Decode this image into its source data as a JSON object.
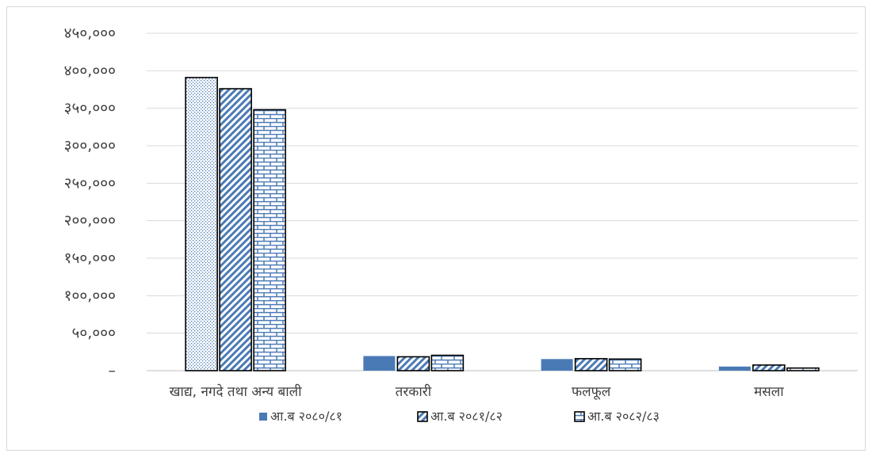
{
  "chart_data": {
    "type": "bar",
    "categories": [
      "खाद्य, नगदे तथा अन्य बाली",
      "तरकारी",
      "फलफूल",
      "मसला"
    ],
    "series": [
      {
        "name": "आ.ब २०८०/८१",
        "values": [
          391000,
          19500,
          15500,
          5500
        ],
        "pattern": "solid",
        "color": "#4a7ab5"
      },
      {
        "name": "आ.ब २०८१/८२",
        "values": [
          376000,
          18500,
          16000,
          7500
        ],
        "pattern": "diagonal",
        "color": "#4a7ab5"
      },
      {
        "name": "आ.ब २०८२/८३",
        "values": [
          348000,
          20500,
          15500,
          3500
        ],
        "pattern": "brick",
        "color": "#4a7ab5"
      }
    ],
    "first_category_patterns": [
      "dots",
      "diagonal",
      "brick"
    ],
    "ylim": [
      0,
      450000
    ],
    "yticks": [
      0,
      50000,
      100000,
      150000,
      200000,
      250000,
      300000,
      350000,
      400000,
      450000
    ],
    "ytick_labels": [
      "–",
      "५०,०००",
      "१००,०००",
      "१५०,०००",
      "२००,०००",
      "२५०,०००",
      "३००,०००",
      "३५०,०००",
      "४००,०००",
      "४५०,०००"
    ],
    "grid": true,
    "legend_position": "bottom",
    "xlabel": "",
    "ylabel": "",
    "title": ""
  }
}
